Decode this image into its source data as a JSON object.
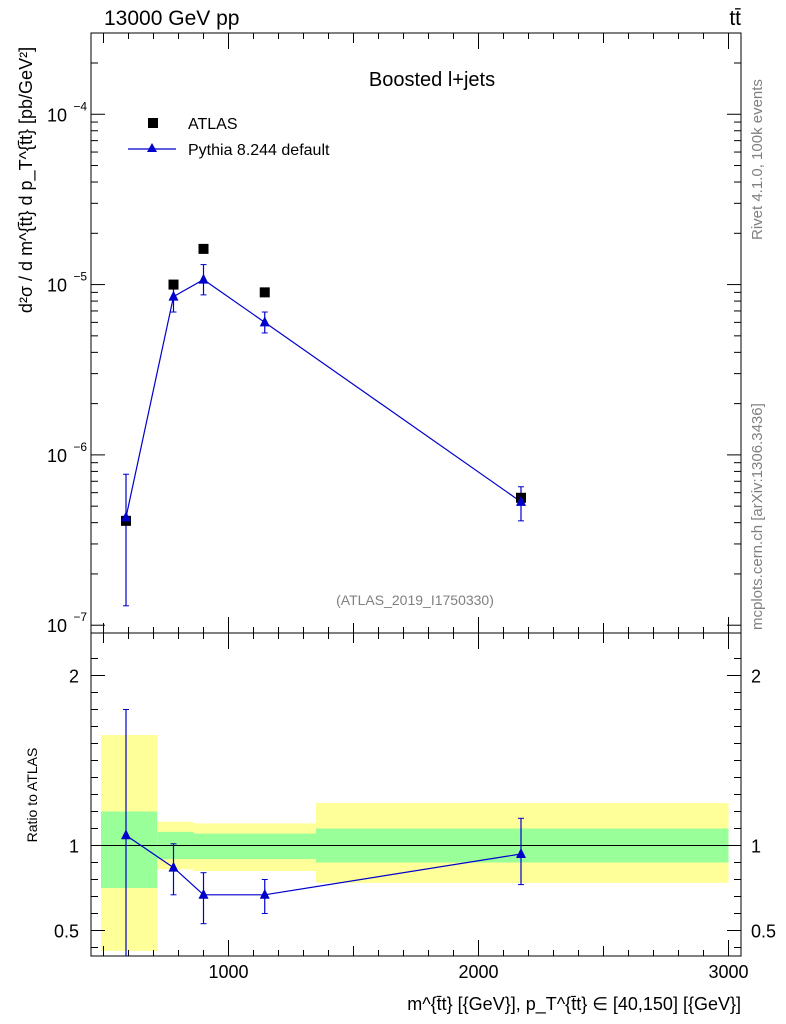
{
  "header": {
    "left": "13000 GeV pp",
    "right": "tt̄"
  },
  "title": "Boosted l+jets",
  "watermark": "(ATLAS_2019_I1750330)",
  "side_text": {
    "top": "Rivet 4.1.0,  100k events",
    "bottom": "mcplots.cern.ch [arXiv:1306.3436]"
  },
  "legend": {
    "data": "ATLAS",
    "mc": "Pythia 8.244 default"
  },
  "colors": {
    "mc": "#0000cc",
    "data": "#000000",
    "band_outer": "#ffff99",
    "band_inner": "#99ff99",
    "frame": "#000000"
  },
  "chart_data": [
    {
      "type": "scatter",
      "panel": "main",
      "yscale": "log",
      "xlim": [
        450,
        3050
      ],
      "ylim": [
        9e-08,
        0.0003
      ],
      "ylabel": "d²σ / d m^{t̄t} d p_T^{t̄t} [pb/GeV²]",
      "yticks": [
        {
          "value": 1e-07,
          "label": "10",
          "exp": "−7"
        },
        {
          "value": 1e-06,
          "label": "10",
          "exp": "−6"
        },
        {
          "value": 1e-05,
          "label": "10",
          "exp": "−5"
        },
        {
          "value": 0.0001,
          "label": "10",
          "exp": "−4"
        }
      ],
      "series": [
        {
          "name": "ATLAS",
          "marker": "square",
          "x": [
            590,
            780,
            900,
            1145,
            2170
          ],
          "y": [
            4.1e-07,
            1e-05,
            1.62e-05,
            9e-06,
            5.6e-07
          ]
        },
        {
          "name": "Pythia 8.244 default",
          "marker": "triangle",
          "x": [
            590,
            780,
            900,
            1145,
            2170
          ],
          "y": [
            4.3e-07,
            8.5e-06,
            1.07e-05,
            6e-06,
            5.3e-07
          ],
          "yerr_low": [
            3e-07,
            1.6e-06,
            2e-06,
            8e-07,
            1.2e-07
          ],
          "yerr_high": [
            3.4e-07,
            1.6e-06,
            2.4e-06,
            9e-07,
            1.2e-07
          ]
        }
      ]
    },
    {
      "type": "line",
      "panel": "ratio",
      "ylabel": "Ratio to ATLAS",
      "xlabel": "m^{t̄t} [{GeV}], p_T^{t̄t} ∈ [40,150] [{GeV}]",
      "xlim": [
        450,
        3050
      ],
      "ylim": [
        0.35,
        2.25
      ],
      "xticks": [
        {
          "value": 1000,
          "label": "1000"
        },
        {
          "value": 2000,
          "label": "2000"
        },
        {
          "value": 3000,
          "label": "3000"
        }
      ],
      "yticks": [
        {
          "value": 0.5,
          "label": "0.5"
        },
        {
          "value": 1,
          "label": "1"
        },
        {
          "value": 2,
          "label": "2"
        }
      ],
      "bands": [
        {
          "x0": 490,
          "x1": 715,
          "inner": [
            0.75,
            1.2
          ],
          "outer": [
            0.38,
            1.65
          ]
        },
        {
          "x0": 715,
          "x1": 860,
          "inner": [
            0.92,
            1.08
          ],
          "outer": [
            0.86,
            1.14
          ]
        },
        {
          "x0": 860,
          "x1": 1350,
          "inner": [
            0.92,
            1.07
          ],
          "outer": [
            0.85,
            1.13
          ]
        },
        {
          "x0": 1350,
          "x1": 3000,
          "inner": [
            0.9,
            1.1
          ],
          "outer": [
            0.78,
            1.25
          ]
        }
      ],
      "series": [
        {
          "name": "Pythia 8.244 default",
          "x": [
            590,
            780,
            900,
            1145,
            2170
          ],
          "y": [
            1.06,
            0.87,
            0.71,
            0.71,
            0.95
          ],
          "yerr_low": [
            0.75,
            0.16,
            0.17,
            0.11,
            0.18
          ],
          "yerr_high": [
            0.74,
            0.14,
            0.13,
            0.09,
            0.21
          ]
        }
      ]
    }
  ]
}
